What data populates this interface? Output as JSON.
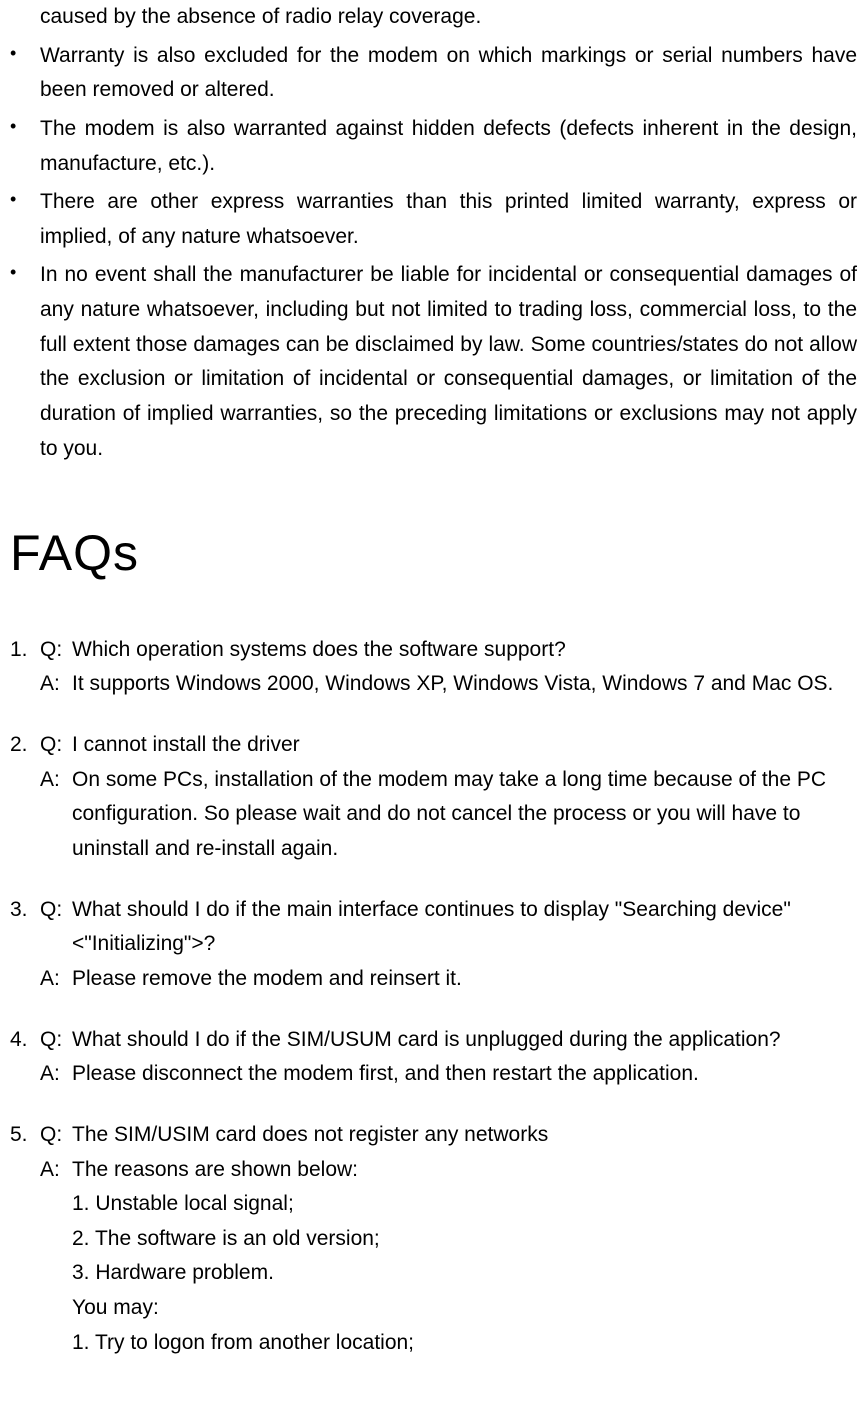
{
  "bullets": [
    "caused by the absence of radio relay coverage.",
    "Warranty is also excluded for the modem on which markings or serial numbers have been removed or altered.",
    "The modem is also warranted against hidden defects (defects inherent in the design, manufacture, etc.).",
    "There are other express warranties than this printed limited warranty, express or implied, of any nature whatsoever.",
    "In no event shall the manufacturer be liable for incidental or consequential damages of any nature whatsoever, including but not limited to trading loss, commercial loss, to the full extent those damages can be disclaimed by law. Some countries/states do not allow the exclusion or limitation of incidental or consequential damages, or limitation of the duration of implied warranties, so the preceding limitations or exclusions may not apply to you."
  ],
  "heading": "FAQs",
  "faqs": [
    {
      "num": "1.",
      "q_label": "Q:",
      "q_text": "Which operation systems does the software support?",
      "a_label": "A:",
      "a_text": "It supports Windows 2000, Windows XP, Windows Vista, Windows 7 and Mac OS."
    },
    {
      "num": "2.",
      "q_label": "Q:",
      "q_text": "I cannot install the driver",
      "a_label": "A:",
      "a_text": "On some PCs, installation of the modem may take a long time because of the PC configuration. So please wait and do not cancel the process or you will have to uninstall and re-install again."
    },
    {
      "num": "3.",
      "q_label": "Q:",
      "q_text": "What should I do if the main interface continues to display \"Searching device\"<\"Initializing\">?",
      "a_label": "A:",
      "a_text": "Please remove the modem and reinsert it."
    },
    {
      "num": "4.",
      "q_label": "Q:",
      "q_text": "What should I do if the SIM/USUM card is unplugged during the application?",
      "a_label": "A:",
      "a_text": "Please disconnect the modem first, and then restart the application."
    },
    {
      "num": "5.",
      "q_label": "Q:",
      "q_text": "The SIM/USIM card does not register any networks",
      "a_label": "A:",
      "a_text_lines": [
        "The reasons are shown below:",
        "1. Unstable local signal;",
        "2. The software is an old version;",
        "3. Hardware problem.",
        "You may:",
        "1. Try to logon from another location;"
      ]
    }
  ]
}
